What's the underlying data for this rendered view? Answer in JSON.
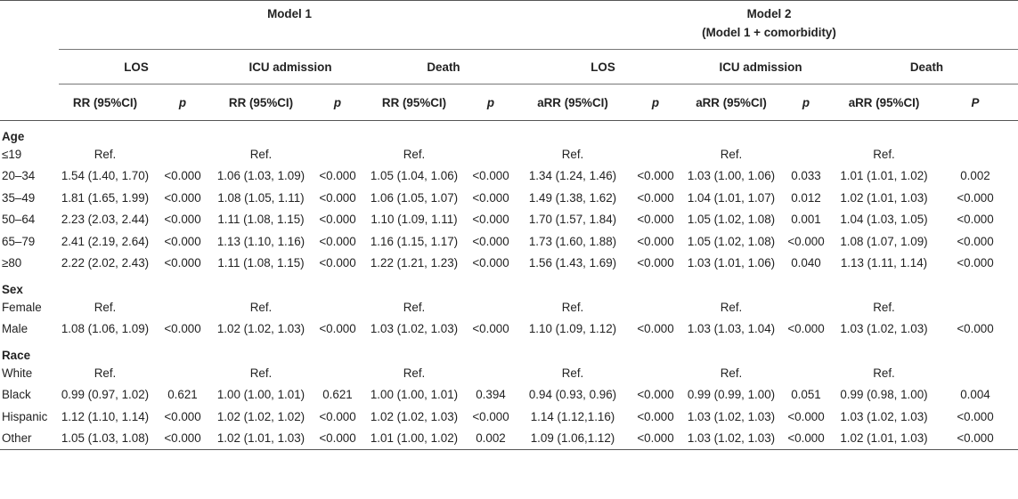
{
  "header": {
    "model1_title": "Model 1",
    "model2_title": "Model 2",
    "model2_subtitle": "(Model 1 + comorbidity)",
    "outcomes": [
      "LOS",
      "ICU admission",
      "Death",
      "LOS",
      "ICU admission",
      "Death"
    ],
    "subcols": [
      "RR (95%CI)",
      "p",
      "RR (95%CI)",
      "p",
      "RR (95%CI)",
      "p",
      "aRR (95%CI)",
      "p",
      "aRR (95%CI)",
      "p",
      "aRR (95%CI)",
      "P"
    ]
  },
  "sections": [
    {
      "title": "Age",
      "rows": [
        {
          "label": "≤19",
          "cells": [
            "Ref.",
            "",
            "Ref.",
            "",
            "Ref.",
            "",
            "Ref.",
            "",
            "Ref.",
            "",
            "Ref.",
            ""
          ]
        },
        {
          "label": "20–34",
          "cells": [
            "1.54 (1.40, 1.70)",
            "<0.000",
            "1.06 (1.03, 1.09)",
            "<0.000",
            "1.05 (1.04, 1.06)",
            "<0.000",
            "1.34 (1.24, 1.46)",
            "<0.000",
            "1.03 (1.00, 1.06)",
            "0.033",
            "1.01 (1.01, 1.02)",
            "0.002"
          ]
        },
        {
          "label": "35–49",
          "cells": [
            "1.81 (1.65, 1.99)",
            "<0.000",
            "1.08 (1.05, 1.11)",
            "<0.000",
            "1.06 (1.05, 1.07)",
            "<0.000",
            "1.49 (1.38, 1.62)",
            "<0.000",
            "1.04 (1.01, 1.07)",
            "0.012",
            "1.02 (1.01, 1.03)",
            "<0.000"
          ]
        },
        {
          "label": "50–64",
          "cells": [
            "2.23 (2.03, 2.44)",
            "<0.000",
            "1.11 (1.08, 1.15)",
            "<0.000",
            "1.10 (1.09, 1.11)",
            "<0.000",
            "1.70 (1.57, 1.84)",
            "<0.000",
            "1.05 (1.02, 1.08)",
            "0.001",
            "1.04 (1.03, 1.05)",
            "<0.000"
          ]
        },
        {
          "label": "65–79",
          "cells": [
            "2.41 (2.19, 2.64)",
            "<0.000",
            "1.13 (1.10, 1.16)",
            "<0.000",
            "1.16 (1.15, 1.17)",
            "<0.000",
            "1.73 (1.60, 1.88)",
            "<0.000",
            "1.05 (1.02, 1.08)",
            "<0.000",
            "1.08 (1.07, 1.09)",
            "<0.000"
          ]
        },
        {
          "label": "≥80",
          "cells": [
            "2.22 (2.02, 2.43)",
            "<0.000",
            "1.11 (1.08, 1.15)",
            "<0.000",
            "1.22 (1.21, 1.23)",
            "<0.000",
            "1.56 (1.43, 1.69)",
            "<0.000",
            "1.03 (1.01, 1.06)",
            "0.040",
            "1.13 (1.11, 1.14)",
            "<0.000"
          ]
        }
      ]
    },
    {
      "title": "Sex",
      "rows": [
        {
          "label": "Female",
          "cells": [
            "Ref.",
            "",
            "Ref.",
            "",
            "Ref.",
            "",
            "Ref.",
            "",
            "Ref.",
            "",
            "Ref.",
            ""
          ]
        },
        {
          "label": "Male",
          "cells": [
            "1.08 (1.06, 1.09)",
            "<0.000",
            "1.02 (1.02, 1.03)",
            "<0.000",
            "1.03 (1.02, 1.03)",
            "<0.000",
            "1.10 (1.09, 1.12)",
            "<0.000",
            "1.03 (1.03, 1.04)",
            "<0.000",
            "1.03 (1.02, 1.03)",
            "<0.000"
          ]
        }
      ]
    },
    {
      "title": "Race",
      "rows": [
        {
          "label": "White",
          "cells": [
            "Ref.",
            "",
            "Ref.",
            "",
            "Ref.",
            "",
            "Ref.",
            "",
            "Ref.",
            "",
            "Ref.",
            ""
          ]
        },
        {
          "label": "Black",
          "cells": [
            "0.99 (0.97, 1.02)",
            "0.621",
            "1.00 (1.00, 1.01)",
            "0.621",
            "1.00 (1.00, 1.01)",
            "0.394",
            "0.94 (0.93, 0.96)",
            "<0.000",
            "0.99 (0.99, 1.00)",
            "0.051",
            "0.99 (0.98, 1.00)",
            "0.004"
          ]
        },
        {
          "label": "Hispanic",
          "cells": [
            "1.12 (1.10, 1.14)",
            "<0.000",
            "1.02 (1.02, 1.02)",
            "<0.000",
            "1.02 (1.02, 1.03)",
            "<0.000",
            "1.14 (1.12,1.16)",
            "<0.000",
            "1.03 (1.02, 1.03)",
            "<0.000",
            "1.03 (1.02, 1.03)",
            "<0.000"
          ]
        },
        {
          "label": "Other",
          "cells": [
            "1.05 (1.03, 1.08)",
            "<0.000",
            "1.02 (1.01, 1.03)",
            "<0.000",
            "1.01 (1.00, 1.02)",
            "0.002",
            "1.09 (1.06,1.12)",
            "<0.000",
            "1.03 (1.02, 1.03)",
            "<0.000",
            "1.02 (1.01, 1.03)",
            "<0.000"
          ]
        }
      ]
    }
  ]
}
